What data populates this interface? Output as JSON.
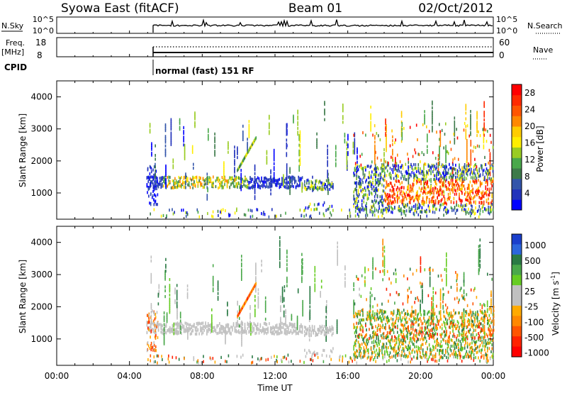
{
  "header": {
    "station": "Syowa East (fitACF)",
    "beam": "Beam 01",
    "date": "02/Oct/2012"
  },
  "top_panels": {
    "nsky_label": "N.Sky",
    "nsearch_label": "N.Search",
    "nsky_ticks": [
      "10^5",
      "10^0"
    ],
    "nsearch_ticks": [
      "10^5",
      "10^0"
    ],
    "freq_label": "Freq.",
    "freq_unit": "[MHz]",
    "freq_ticks": [
      "18",
      "8"
    ],
    "nave_label": "Nave",
    "nave_ticks": [
      "60",
      "0"
    ],
    "cpid_label": "CPID",
    "cpid_text": "normal (fast) 151 RF"
  },
  "chart_data": [
    {
      "type": "heatmap",
      "name": "power",
      "ylabel": "Slant Range [km]",
      "xlabel": "Time UT",
      "xlim": [
        "00:00",
        "24:00"
      ],
      "ylim": [
        180,
        4500
      ],
      "xticks": [
        "00:00",
        "04:00",
        "08:00",
        "12:00",
        "16:00",
        "20:00",
        "00:00"
      ],
      "yticks": [
        "1000",
        "2000",
        "3000",
        "4000"
      ],
      "colorbar": {
        "label": "Power [dB]",
        "ticks": [
          "4",
          "8",
          "12",
          "16",
          "20",
          "24",
          "28"
        ],
        "colors": [
          "#0000ff",
          "#2233bb",
          "#3355aa",
          "#3d7a4a",
          "#49a84a",
          "#99cc22",
          "#ffee00",
          "#ffcc00",
          "#ff8800",
          "#ff5500",
          "#ff2a00",
          "#ff0000"
        ]
      },
      "data_start": "04:56"
    },
    {
      "type": "heatmap",
      "name": "velocity",
      "ylabel": "Slant Range [km]",
      "xlabel": "Time UT",
      "xlim": [
        "00:00",
        "24:00"
      ],
      "ylim": [
        180,
        4500
      ],
      "xticks": [
        "00:00",
        "04:00",
        "08:00",
        "12:00",
        "16:00",
        "20:00",
        "00:00"
      ],
      "yticks": [
        "1000",
        "2000",
        "3000",
        "4000"
      ],
      "colorbar": {
        "label": "Velocity [m s-1]",
        "ticks": [
          "1000",
          "500",
          "100",
          "25",
          "-25",
          "-100",
          "-500",
          "-1000"
        ],
        "colors": [
          "#1a3fcc",
          "#2c66dd",
          "#2a7a44",
          "#4aa84a",
          "#66cc22",
          "#c0c0c0",
          "#c0c0c0",
          "#ffaa00",
          "#ff8800",
          "#ff5500",
          "#ff2200",
          "#ff0000"
        ]
      },
      "data_start": "04:56"
    }
  ]
}
